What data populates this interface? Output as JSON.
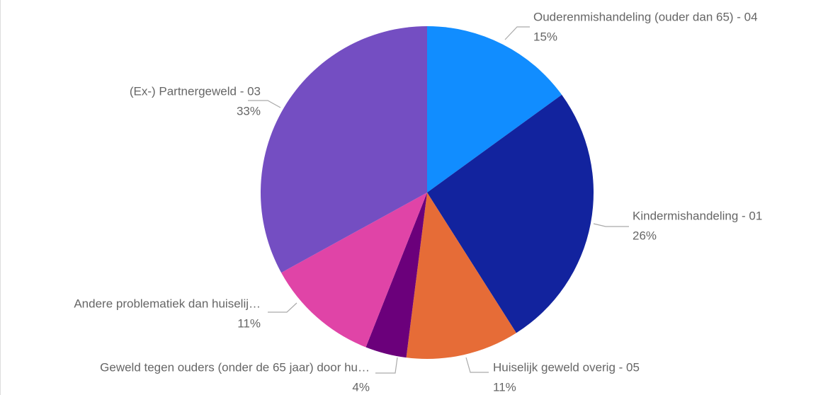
{
  "chart_data": {
    "type": "pie",
    "categories": [
      "Ouderenmishandeling (ouder dan 65) - 04",
      "Kindermishandeling - 01",
      "Huiselijk geweld overig - 05",
      "Geweld tegen ouders (onder de 65 jaar) door hu…",
      "Andere problematiek dan huiselij…",
      "(Ex-) Partnergeweld - 03"
    ],
    "values": [
      15,
      26,
      11,
      4,
      11,
      33
    ],
    "value_labels": [
      "15%",
      "26%",
      "11%",
      "4%",
      "11%",
      "33%"
    ],
    "colors": [
      "#118dff",
      "#12239e",
      "#e66c37",
      "#6b007b",
      "#e044a7",
      "#744ec2"
    ]
  }
}
